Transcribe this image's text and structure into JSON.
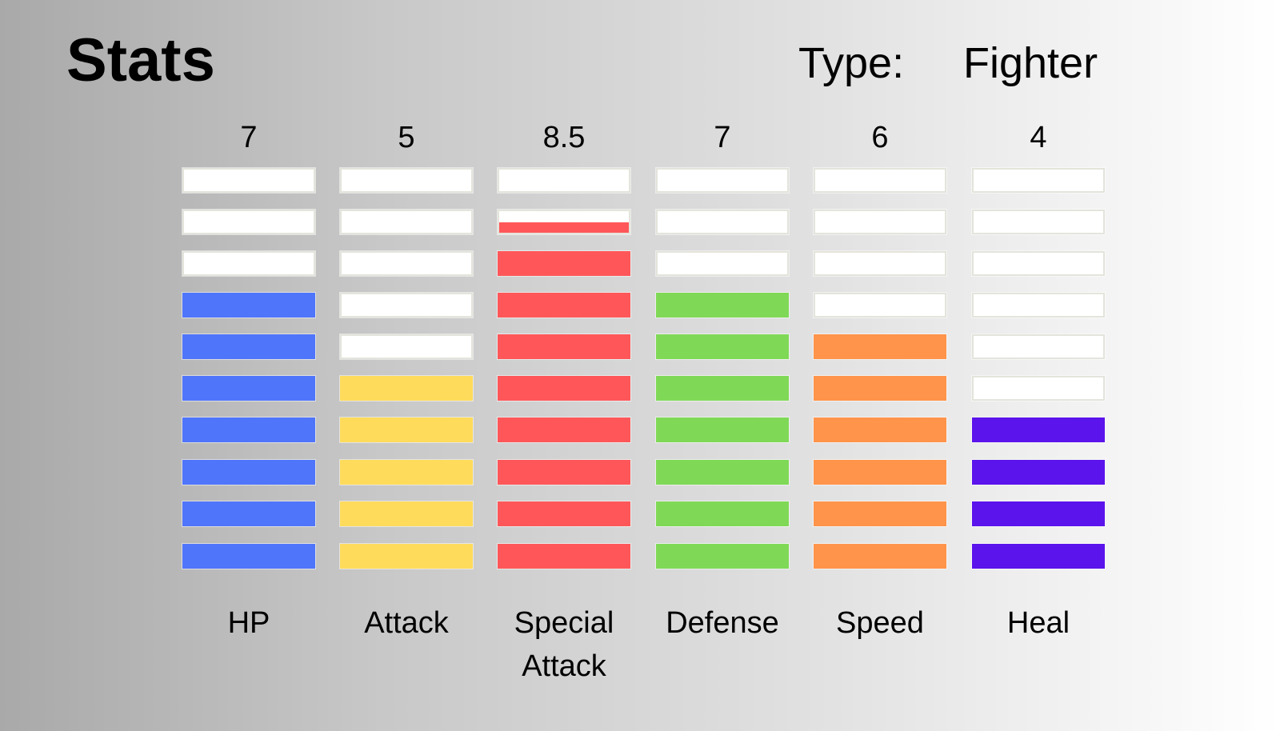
{
  "header": {
    "title": "Stats",
    "type_label": "Type:",
    "type_value": "Fighter"
  },
  "stats": {
    "max": 10,
    "items": [
      {
        "label": "HP",
        "value": "7",
        "amount": 7,
        "color": "#4f75fb"
      },
      {
        "label": "Attack",
        "value": "5",
        "amount": 5,
        "color": "#ffdb5c"
      },
      {
        "label": "Special Attack",
        "value": "8.5",
        "amount": 8.5,
        "color": "#ff5759"
      },
      {
        "label": "Defense",
        "value": "7",
        "amount": 7,
        "color": "#7fd956"
      },
      {
        "label": "Speed",
        "value": "6",
        "amount": 6,
        "color": "#ff944a"
      },
      {
        "label": "Heal",
        "value": "4",
        "amount": 4,
        "color": "#5b14eb"
      }
    ]
  }
}
